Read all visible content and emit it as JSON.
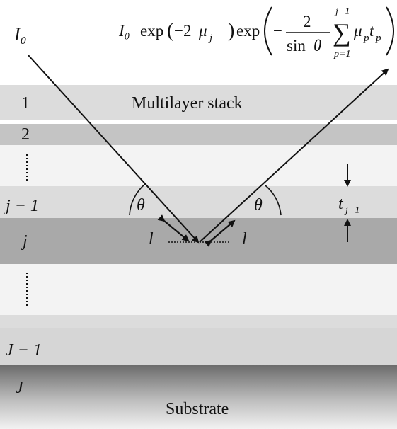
{
  "incident_label": "I₀",
  "formula": {
    "i0": "I₀",
    "exp1": "exp",
    "open1": "(",
    "minus2": "−2",
    "mu": "μ",
    "j_sub": "j",
    "close1": ")",
    "exp2": "exp",
    "minus_sign": "−",
    "frac_num": "2",
    "frac_den_sin": "sin",
    "frac_den_theta": "θ",
    "sum_symbol": "∑",
    "sum_upper": "j−1",
    "sum_lower": "p=1",
    "mu_p": "μ",
    "p_sub1": "p",
    "t": "t",
    "p_sub2": "p"
  },
  "stack_title": "Multilayer stack",
  "layers": {
    "l1": "1",
    "l2": "2",
    "ljm1": "j − 1",
    "lj": "j",
    "lJm1": "J − 1",
    "lJ": "J"
  },
  "substrate_label": "Substrate",
  "angle_label": "θ",
  "length_label": "l",
  "thickness_label": "t",
  "thickness_sub": "j−1",
  "colors": {
    "layer_light": "#dcdcdc",
    "layer_mid": "#c6c6c6",
    "layer_dark": "#a9a9a9",
    "layer_pale": "#f3f3f3",
    "ink": "#111111"
  }
}
